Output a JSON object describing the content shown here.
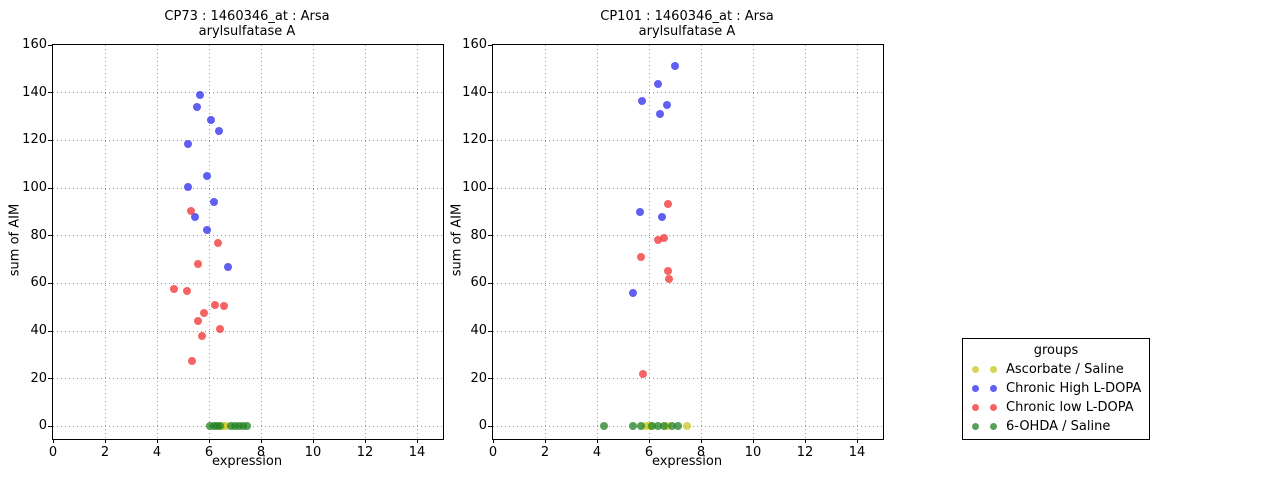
{
  "page": {
    "background": "#ffffff"
  },
  "legend": {
    "title": "groups",
    "entries": [
      {
        "label": "Ascorbate / Saline",
        "color": "#c8c81e"
      },
      {
        "label": "Chronic High L-DOPA",
        "color": "#2a2aee"
      },
      {
        "label": "Chronic low L-DOPA",
        "color": "#f03030"
      },
      {
        "label": "6-OHDA / Saline",
        "color": "#208020"
      }
    ]
  },
  "chart_data": [
    {
      "type": "scatter",
      "title": "CP73 : 1460346_at : Arsa",
      "subtitle": "arylsulfatase A",
      "xlabel": "expression",
      "ylabel": "sum of AIM",
      "xlim": [
        0,
        15
      ],
      "ylim": [
        -5.3,
        160
      ],
      "xticks": [
        0,
        2,
        4,
        6,
        8,
        10,
        12,
        14
      ],
      "yticks": [
        0,
        20,
        40,
        60,
        80,
        100,
        120,
        140,
        160
      ],
      "grid": true,
      "legend_position": "outside-right",
      "series": [
        {
          "name": "Ascorbate / Saline",
          "color": "#c8c81e",
          "points": [
            [
              6.55,
              0
            ],
            [
              6.65,
              0
            ]
          ]
        },
        {
          "name": "Chronic High L-DOPA",
          "color": "#2a2aee",
          "points": [
            [
              5.65,
              139
            ],
            [
              5.54,
              134
            ],
            [
              6.08,
              128.5
            ],
            [
              6.38,
              124
            ],
            [
              5.19,
              118.5
            ],
            [
              5.92,
              105
            ],
            [
              5.19,
              100.5
            ],
            [
              6.19,
              94
            ],
            [
              5.46,
              88
            ],
            [
              5.92,
              82.5
            ],
            [
              6.72,
              67
            ]
          ]
        },
        {
          "name": "Chronic low L-DOPA",
          "color": "#f03030",
          "points": [
            [
              5.31,
              90.5
            ],
            [
              6.33,
              77
            ],
            [
              5.57,
              68
            ],
            [
              4.65,
              57.5
            ],
            [
              5.14,
              57
            ],
            [
              6.23,
              51
            ],
            [
              6.58,
              50.5
            ],
            [
              5.81,
              47.5
            ],
            [
              5.58,
              44
            ],
            [
              6.42,
              41
            ],
            [
              5.73,
              38
            ],
            [
              5.35,
              27.5
            ]
          ]
        },
        {
          "name": "6-OHDA / Saline",
          "color": "#208020",
          "points": [
            [
              6.05,
              0
            ],
            [
              6.18,
              0
            ],
            [
              6.3,
              0
            ],
            [
              6.42,
              0
            ],
            [
              6.85,
              0
            ],
            [
              7.0,
              0
            ],
            [
              7.15,
              0
            ],
            [
              7.32,
              0
            ],
            [
              7.45,
              0
            ]
          ]
        }
      ]
    },
    {
      "type": "scatter",
      "title": "CP101 : 1460346_at : Arsa",
      "subtitle": "arylsulfatase A",
      "xlabel": "expression",
      "ylabel": "sum of AIM",
      "xlim": [
        0,
        15
      ],
      "ylim": [
        -5.3,
        160
      ],
      "xticks": [
        0,
        2,
        4,
        6,
        8,
        10,
        12,
        14
      ],
      "yticks": [
        0,
        20,
        40,
        60,
        80,
        100,
        120,
        140,
        160
      ],
      "grid": true,
      "legend_position": "outside-right",
      "series": [
        {
          "name": "Ascorbate / Saline",
          "color": "#c8c81e",
          "points": [
            [
              5.88,
              0
            ],
            [
              6.05,
              0
            ],
            [
              6.68,
              0
            ],
            [
              7.45,
              0
            ]
          ]
        },
        {
          "name": "Chronic High L-DOPA",
          "color": "#2a2aee",
          "points": [
            [
              7.0,
              151
            ],
            [
              6.33,
              143.5
            ],
            [
              5.73,
              136.5
            ],
            [
              6.68,
              135
            ],
            [
              6.42,
              131
            ],
            [
              5.65,
              90
            ],
            [
              6.49,
              88
            ],
            [
              5.4,
              56
            ]
          ]
        },
        {
          "name": "Chronic low L-DOPA",
          "color": "#f03030",
          "points": [
            [
              6.74,
              93.5
            ],
            [
              6.58,
              79
            ],
            [
              6.36,
              78
            ],
            [
              5.68,
              71
            ],
            [
              6.72,
              65
            ],
            [
              6.77,
              62
            ],
            [
              5.76,
              22
            ]
          ]
        },
        {
          "name": "6-OHDA / Saline",
          "color": "#208020",
          "points": [
            [
              4.27,
              0
            ],
            [
              5.37,
              0
            ],
            [
              5.68,
              0
            ],
            [
              6.1,
              0
            ],
            [
              6.36,
              0
            ],
            [
              6.58,
              0
            ],
            [
              6.9,
              0
            ],
            [
              7.1,
              0
            ]
          ]
        }
      ]
    }
  ]
}
